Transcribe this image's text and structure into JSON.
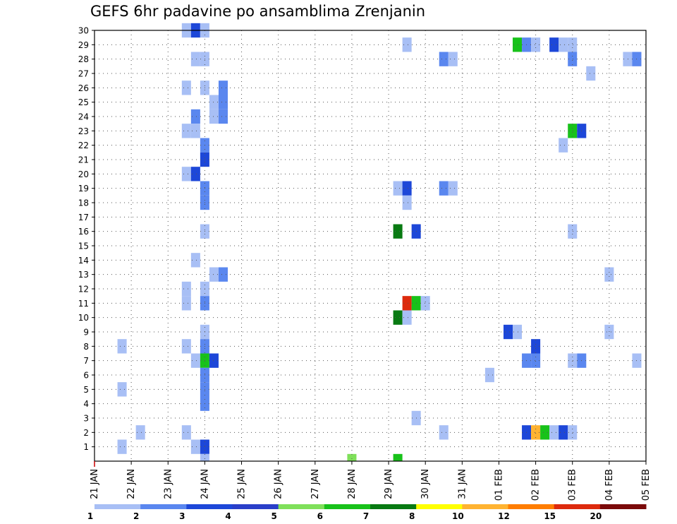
{
  "chart_data": {
    "type": "heatmap",
    "title": "GEFS 6hr padavine po ansamblima Zrenjanin",
    "x_tick_labels": [
      "21 JAN",
      "22 JAN",
      "23 JAN",
      "24 JAN",
      "25 JAN",
      "26 JAN",
      "27 JAN",
      "28 JAN",
      "29 JAN",
      "30 JAN",
      "31 JAN",
      "01 FEB",
      "02 FEB",
      "03 FEB",
      "04 FEB",
      "05 FEB"
    ],
    "y_tick_labels": [
      "1",
      "2",
      "3",
      "4",
      "5",
      "6",
      "7",
      "8",
      "9",
      "10",
      "11",
      "12",
      "13",
      "14",
      "15",
      "16",
      "17",
      "18",
      "19",
      "20",
      "21",
      "22",
      "23",
      "24",
      "25",
      "26",
      "27",
      "28",
      "29",
      "30"
    ],
    "x_unit": "6-hour step from 21 JAN 00Z",
    "xlim": [
      0,
      60
    ],
    "ylim": [
      0,
      30
    ],
    "grid": "dotted",
    "legend_position": "bottom",
    "legend": {
      "labels": [
        "1",
        "2",
        "3",
        "4",
        "5",
        "6",
        "7",
        "8",
        "10",
        "12",
        "15",
        "20"
      ],
      "colors": [
        "#a8bff5",
        "#5a87ef",
        "#1d47d8",
        "#2a3fc9",
        "#7fe05a",
        "#18c21a",
        "#087a12",
        "#ffff00",
        "#ffb331",
        "#ff7d00",
        "#dd2a0d",
        "#7b0a0a"
      ]
    },
    "cells": [
      {
        "step": 10,
        "member": 30,
        "level": 1
      },
      {
        "step": 11,
        "member": 30,
        "level": 3
      },
      {
        "step": 12,
        "member": 30,
        "level": 1
      },
      {
        "step": 34,
        "member": 29,
        "level": 1
      },
      {
        "step": 46,
        "member": 29,
        "level": 6
      },
      {
        "step": 47,
        "member": 29,
        "level": 2
      },
      {
        "step": 48,
        "member": 29,
        "level": 1
      },
      {
        "step": 50,
        "member": 29,
        "level": 3
      },
      {
        "step": 51,
        "member": 29,
        "level": 1
      },
      {
        "step": 52,
        "member": 29,
        "level": 1
      },
      {
        "step": 11,
        "member": 28,
        "level": 1
      },
      {
        "step": 12,
        "member": 28,
        "level": 1
      },
      {
        "step": 38,
        "member": 28,
        "level": 2
      },
      {
        "step": 39,
        "member": 28,
        "level": 1
      },
      {
        "step": 52,
        "member": 28,
        "level": 2
      },
      {
        "step": 58,
        "member": 28,
        "level": 1
      },
      {
        "step": 59,
        "member": 28,
        "level": 2
      },
      {
        "step": 54,
        "member": 27,
        "level": 1
      },
      {
        "step": 10,
        "member": 26,
        "level": 1
      },
      {
        "step": 12,
        "member": 26,
        "level": 1
      },
      {
        "step": 14,
        "member": 26,
        "level": 2
      },
      {
        "step": 13,
        "member": 25,
        "level": 1
      },
      {
        "step": 14,
        "member": 25,
        "level": 2
      },
      {
        "step": 11,
        "member": 24,
        "level": 2
      },
      {
        "step": 13,
        "member": 24,
        "level": 1
      },
      {
        "step": 14,
        "member": 24,
        "level": 2
      },
      {
        "step": 10,
        "member": 23,
        "level": 1
      },
      {
        "step": 11,
        "member": 23,
        "level": 1
      },
      {
        "step": 52,
        "member": 23,
        "level": 6
      },
      {
        "step": 53,
        "member": 23,
        "level": 3
      },
      {
        "step": 12,
        "member": 22,
        "level": 2
      },
      {
        "step": 51,
        "member": 22,
        "level": 1
      },
      {
        "step": 12,
        "member": 21,
        "level": 3
      },
      {
        "step": 10,
        "member": 20,
        "level": 1
      },
      {
        "step": 11,
        "member": 20,
        "level": 3
      },
      {
        "step": 12,
        "member": 19,
        "level": 2
      },
      {
        "step": 33,
        "member": 19,
        "level": 1
      },
      {
        "step": 34,
        "member": 19,
        "level": 3
      },
      {
        "step": 38,
        "member": 19,
        "level": 2
      },
      {
        "step": 39,
        "member": 19,
        "level": 1
      },
      {
        "step": 12,
        "member": 18,
        "level": 2
      },
      {
        "step": 34,
        "member": 18,
        "level": 1
      },
      {
        "step": 12,
        "member": 16,
        "level": 1
      },
      {
        "step": 33,
        "member": 16,
        "level": 7
      },
      {
        "step": 35,
        "member": 16,
        "level": 3
      },
      {
        "step": 52,
        "member": 16,
        "level": 1
      },
      {
        "step": 11,
        "member": 14,
        "level": 1
      },
      {
        "step": 13,
        "member": 13,
        "level": 1
      },
      {
        "step": 14,
        "member": 13,
        "level": 2
      },
      {
        "step": 56,
        "member": 13,
        "level": 1
      },
      {
        "step": 10,
        "member": 12,
        "level": 1
      },
      {
        "step": 12,
        "member": 12,
        "level": 1
      },
      {
        "step": 10,
        "member": 11,
        "level": 1
      },
      {
        "step": 12,
        "member": 11,
        "level": 2
      },
      {
        "step": 34,
        "member": 11,
        "level": 15
      },
      {
        "step": 35,
        "member": 11,
        "level": 6
      },
      {
        "step": 36,
        "member": 11,
        "level": 1
      },
      {
        "step": 33,
        "member": 10,
        "level": 7
      },
      {
        "step": 34,
        "member": 10,
        "level": 1
      },
      {
        "step": 12,
        "member": 9,
        "level": 1
      },
      {
        "step": 45,
        "member": 9,
        "level": 3
      },
      {
        "step": 46,
        "member": 9,
        "level": 1
      },
      {
        "step": 56,
        "member": 9,
        "level": 1
      },
      {
        "step": 3,
        "member": 8,
        "level": 1
      },
      {
        "step": 10,
        "member": 8,
        "level": 1
      },
      {
        "step": 12,
        "member": 8,
        "level": 2
      },
      {
        "step": 48,
        "member": 8,
        "level": 3
      },
      {
        "step": 11,
        "member": 7,
        "level": 1
      },
      {
        "step": 12,
        "member": 7,
        "level": 6
      },
      {
        "step": 13,
        "member": 7,
        "level": 3
      },
      {
        "step": 47,
        "member": 7,
        "level": 2
      },
      {
        "step": 48,
        "member": 7,
        "level": 2
      },
      {
        "step": 52,
        "member": 7,
        "level": 1
      },
      {
        "step": 53,
        "member": 7,
        "level": 2
      },
      {
        "step": 59,
        "member": 7,
        "level": 1
      },
      {
        "step": 12,
        "member": 6,
        "level": 2
      },
      {
        "step": 43,
        "member": 6,
        "level": 1
      },
      {
        "step": 3,
        "member": 5,
        "level": 1
      },
      {
        "step": 12,
        "member": 5,
        "level": 2
      },
      {
        "step": 12,
        "member": 4,
        "level": 2
      },
      {
        "step": 35,
        "member": 3,
        "level": 1
      },
      {
        "step": 5,
        "member": 2,
        "level": 1
      },
      {
        "step": 10,
        "member": 2,
        "level": 1
      },
      {
        "step": 38,
        "member": 2,
        "level": 1
      },
      {
        "step": 47,
        "member": 2,
        "level": 3
      },
      {
        "step": 48,
        "member": 2,
        "level": 10
      },
      {
        "step": 49,
        "member": 2,
        "level": 6
      },
      {
        "step": 50,
        "member": 2,
        "level": 1
      },
      {
        "step": 51,
        "member": 2,
        "level": 3
      },
      {
        "step": 52,
        "member": 2,
        "level": 1
      },
      {
        "step": 3,
        "member": 1,
        "level": 1
      },
      {
        "step": 11,
        "member": 1,
        "level": 1
      },
      {
        "step": 12,
        "member": 1,
        "level": 3
      },
      {
        "step": 12,
        "member": 0,
        "level": 1
      },
      {
        "step": 28,
        "member": 0,
        "level": 5
      },
      {
        "step": 33,
        "member": 0,
        "level": 6
      }
    ]
  }
}
